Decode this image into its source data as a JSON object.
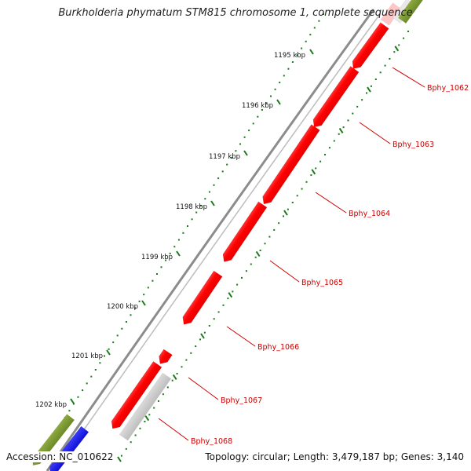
{
  "title": "Burkholderia phymatum STM815 chromosome 1, complete sequence",
  "footer": {
    "accession": "Accession: NC_010622",
    "summary": "Topology: circular; Length: 3,479,187 bp; Genes: 3,140"
  },
  "ruler_labels": [
    "1195 kbp",
    "1196 kbp",
    "1197 kbp",
    "1198 kbp",
    "1199 kbp",
    "1200 kbp",
    "1201 kbp",
    "1202 kbp"
  ],
  "gene_labels": [
    "Bphy_1062",
    "Bphy_1063",
    "Bphy_1064",
    "Bphy_1065",
    "Bphy_1066",
    "Bphy_1067",
    "Bphy_1068"
  ],
  "colors": {
    "forward_cds": "#ff0000",
    "reverse_cds": "#c8c8c8",
    "backbone": "#8c8c8c",
    "ruler_ticks": "#1a7a1a",
    "gene_label": "#cc0000",
    "green_feature": "#6b8e23",
    "blue_feature": "#0000ff"
  }
}
